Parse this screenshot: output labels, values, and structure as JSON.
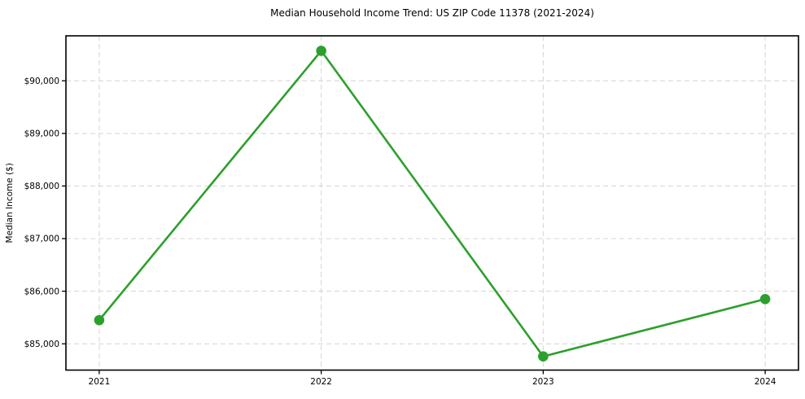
{
  "figure": {
    "background": "#ffffff"
  },
  "chart_data": {
    "type": "line",
    "title": "Median Household Income Trend: US ZIP Code 11378 (2021-2024)",
    "xlabel": "",
    "ylabel": "Median Income ($)",
    "x": [
      2021,
      2022,
      2023,
      2024
    ],
    "x_tick_labels": [
      "2021",
      "2022",
      "2023",
      "2024"
    ],
    "series": [
      {
        "name": "median-household-income",
        "values": [
          85450,
          90570,
          84760,
          85850
        ],
        "color": "#2ca02c",
        "marker": "circle"
      }
    ],
    "y_ticks": [
      85000,
      86000,
      87000,
      88000,
      89000,
      90000
    ],
    "y_tick_labels": [
      "$85,000",
      "$86,000",
      "$87,000",
      "$88,000",
      "$89,000",
      "$90,000"
    ],
    "xlim": [
      2020.85,
      2024.15
    ],
    "ylim": [
      84500,
      90855
    ],
    "grid": true,
    "grid_color": "#d4d4d4",
    "axis_color": "#000000",
    "text_color": "#000000",
    "legend": "none"
  }
}
